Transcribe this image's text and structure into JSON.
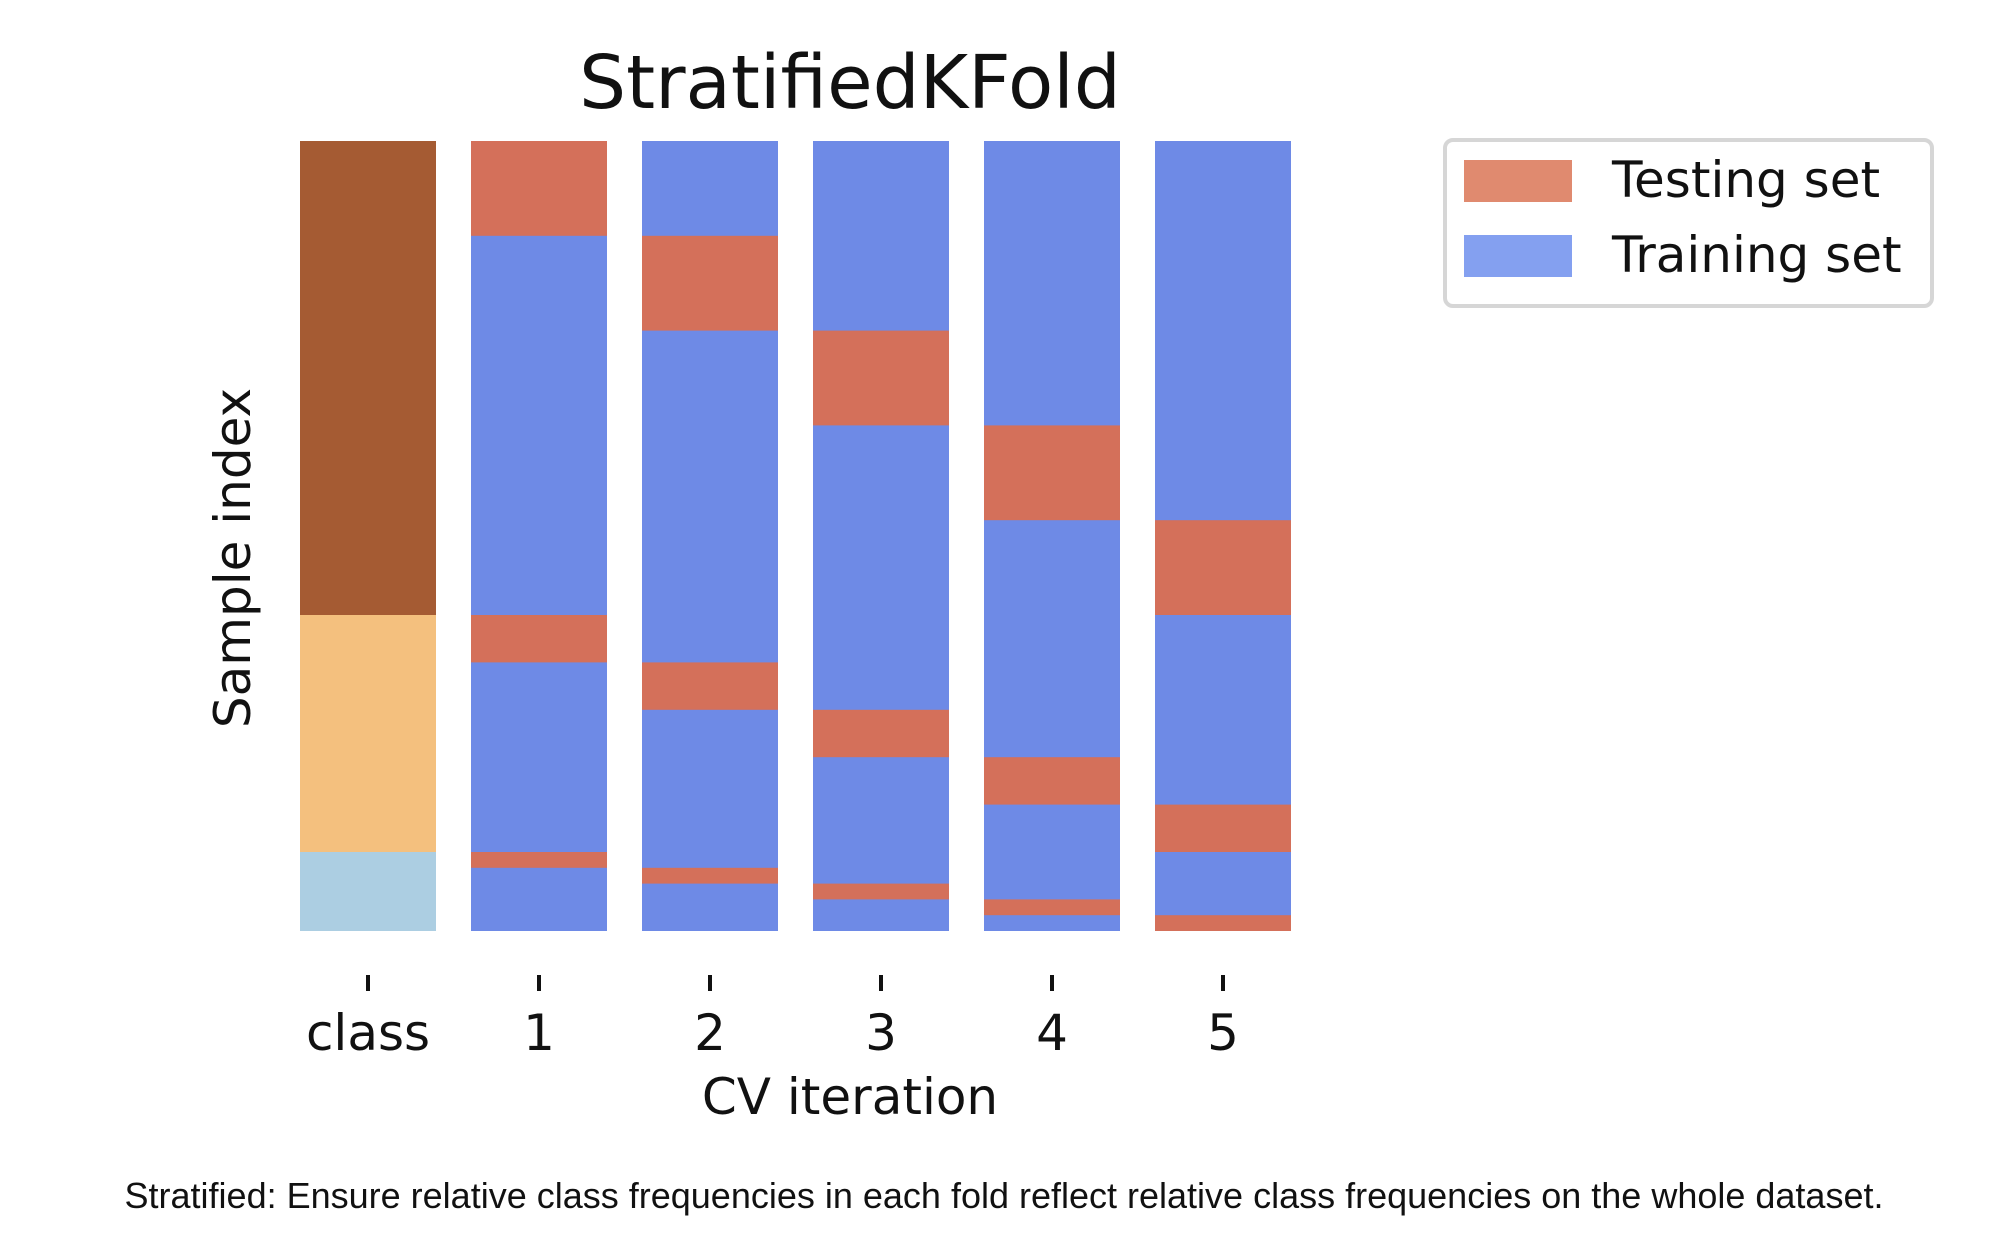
{
  "chart_data": {
    "type": "bar",
    "title": "StratifiedKFold",
    "xlabel": "CV iteration",
    "ylabel": "Sample index",
    "n_samples": 100,
    "categories": [
      "class",
      "1",
      "2",
      "3",
      "4",
      "5"
    ],
    "class_segments": [
      {
        "start": 0,
        "end": 60,
        "color": "#a55b33"
      },
      {
        "start": 60,
        "end": 90,
        "color": "#f4c07e"
      },
      {
        "start": 90,
        "end": 100,
        "color": "#accee2"
      }
    ],
    "folds": [
      {
        "label": "1",
        "testing": [
          [
            0,
            12
          ],
          [
            60,
            66
          ],
          [
            90,
            92
          ]
        ]
      },
      {
        "label": "2",
        "testing": [
          [
            12,
            24
          ],
          [
            66,
            72
          ],
          [
            92,
            94
          ]
        ]
      },
      {
        "label": "3",
        "testing": [
          [
            24,
            36
          ],
          [
            72,
            78
          ],
          [
            94,
            96
          ]
        ]
      },
      {
        "label": "4",
        "testing": [
          [
            36,
            48
          ],
          [
            78,
            84
          ],
          [
            96,
            98
          ]
        ]
      },
      {
        "label": "5",
        "testing": [
          [
            48,
            60
          ],
          [
            84,
            90
          ],
          [
            98,
            100
          ]
        ]
      }
    ],
    "colors": {
      "testing": "#d4705a",
      "training": "#6e8ae6",
      "legend_testing": "#e08a6f",
      "legend_training": "#84a0f0"
    },
    "legend": {
      "placement": "outside-top-right",
      "entries": [
        "Testing set",
        "Training set"
      ]
    },
    "grid": false
  },
  "caption": "Stratified: Ensure relative class frequencies in each fold reflect relative class frequencies on the whole dataset."
}
